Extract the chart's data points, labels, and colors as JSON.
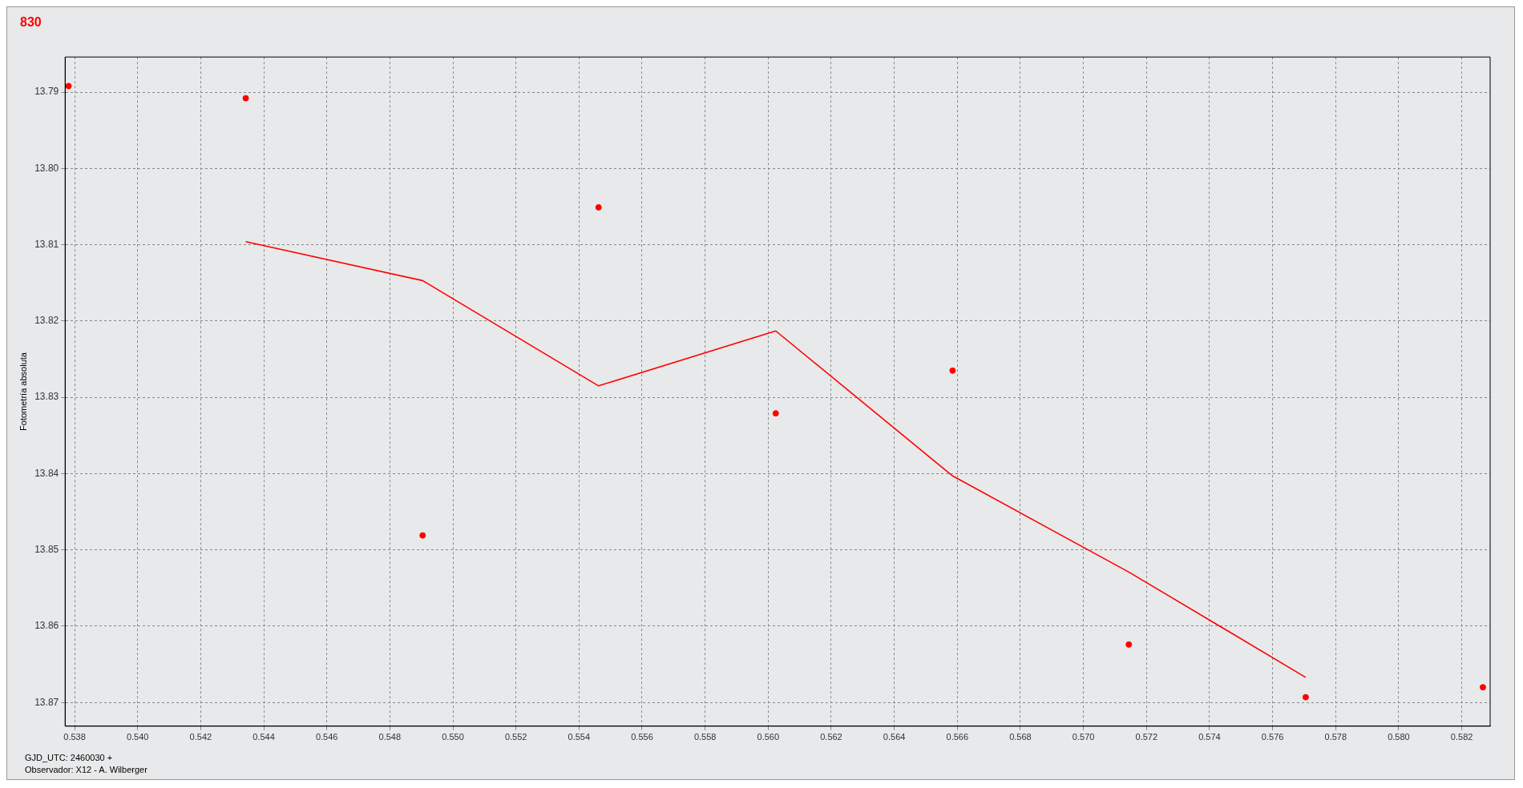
{
  "chart_data": {
    "type": "scatter",
    "title": "830",
    "ylabel": "Fotometría absoluta",
    "annotations": [
      "GJD_UTC: 2460030 +",
      "Observador: X12 - A. Wilberger"
    ],
    "xlim": [
      0.5377,
      0.5829
    ],
    "ylim": [
      13.8731,
      13.7854
    ],
    "xticks": [
      {
        "value": 0.538,
        "label": "0.538"
      },
      {
        "value": 0.54,
        "label": "0.540"
      },
      {
        "value": 0.542,
        "label": "0.542"
      },
      {
        "value": 0.544,
        "label": "0.544"
      },
      {
        "value": 0.546,
        "label": "0.546"
      },
      {
        "value": 0.548,
        "label": "0.548"
      },
      {
        "value": 0.55,
        "label": "0.550"
      },
      {
        "value": 0.552,
        "label": "0.552"
      },
      {
        "value": 0.554,
        "label": "0.554"
      },
      {
        "value": 0.556,
        "label": "0.556"
      },
      {
        "value": 0.558,
        "label": "0.558"
      },
      {
        "value": 0.56,
        "label": "0.560"
      },
      {
        "value": 0.562,
        "label": "0.562"
      },
      {
        "value": 0.564,
        "label": "0.564"
      },
      {
        "value": 0.566,
        "label": "0.566"
      },
      {
        "value": 0.568,
        "label": "0.568"
      },
      {
        "value": 0.57,
        "label": "0.570"
      },
      {
        "value": 0.572,
        "label": "0.572"
      },
      {
        "value": 0.574,
        "label": "0.574"
      },
      {
        "value": 0.576,
        "label": "0.576"
      },
      {
        "value": 0.578,
        "label": "0.578"
      },
      {
        "value": 0.58,
        "label": "0.580"
      },
      {
        "value": 0.582,
        "label": "0.582"
      }
    ],
    "yticks": [
      13.79,
      {
        "value": 13.8,
        "label": "13.80"
      },
      13.81,
      13.82,
      13.83,
      13.84,
      13.85,
      13.86,
      13.87
    ],
    "grid": true,
    "legend": false,
    "series": [
      {
        "type": "scatter",
        "color": "#ff0000",
        "marker": "circle",
        "x": [
          0.53781,
          0.54343,
          0.54904,
          0.55462,
          0.56024,
          0.56585,
          0.57144,
          0.57705,
          0.58267
        ],
        "values": [
          13.7892,
          13.7908,
          13.8481,
          13.8051,
          13.8321,
          13.8265,
          13.8624,
          13.8693,
          13.868
        ]
      },
      {
        "type": "line",
        "color": "#ff0000",
        "marker": "none",
        "line_style": "solid",
        "x": [
          0.54343,
          0.54904,
          0.55462,
          0.56024,
          0.56585,
          0.57144,
          0.57705
        ],
        "values": [
          13.8096,
          13.8147,
          13.8285,
          13.8213,
          13.8403,
          13.8529,
          13.8667
        ]
      }
    ]
  }
}
